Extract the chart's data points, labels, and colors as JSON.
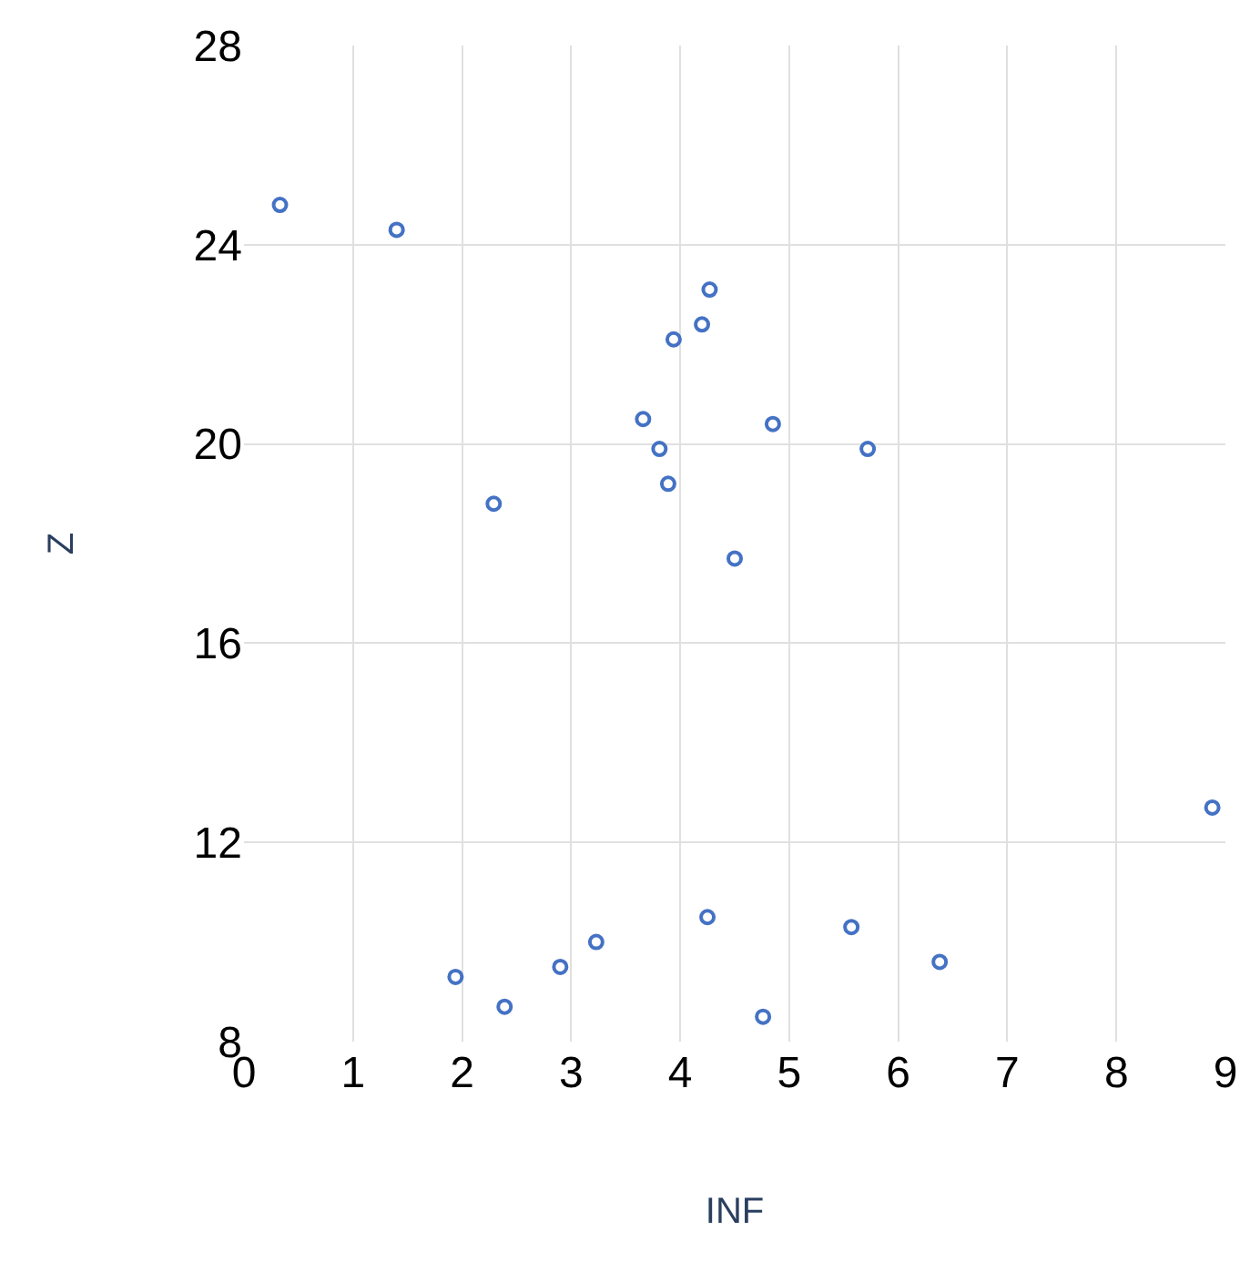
{
  "chart_data": {
    "type": "scatter",
    "xlabel": "INF",
    "ylabel": "Z",
    "marker": "circle",
    "grid": true,
    "legend": false,
    "xlim": [
      0,
      9
    ],
    "xticks": [
      0,
      1,
      2,
      3,
      4,
      5,
      6,
      7,
      8,
      9
    ],
    "ylim": [
      8,
      28
    ],
    "yticks": [
      8,
      12,
      16,
      20,
      24,
      28
    ],
    "series": [
      {
        "color": "#4472c4",
        "x": [
          0.33,
          1.4,
          4.27,
          4.2,
          3.94,
          3.66,
          4.85,
          3.81,
          5.72,
          3.89,
          2.29,
          4.5,
          8.88,
          4.25,
          5.57,
          3.23,
          6.38,
          2.9,
          1.94,
          2.39,
          4.76
        ],
        "values": [
          24.8,
          24.3,
          23.1,
          22.4,
          22.1,
          20.5,
          20.4,
          19.9,
          19.9,
          19.2,
          18.8,
          17.7,
          12.7,
          10.5,
          10.3,
          10.0,
          9.6,
          9.5,
          9.3,
          8.7,
          8.5
        ]
      }
    ]
  }
}
